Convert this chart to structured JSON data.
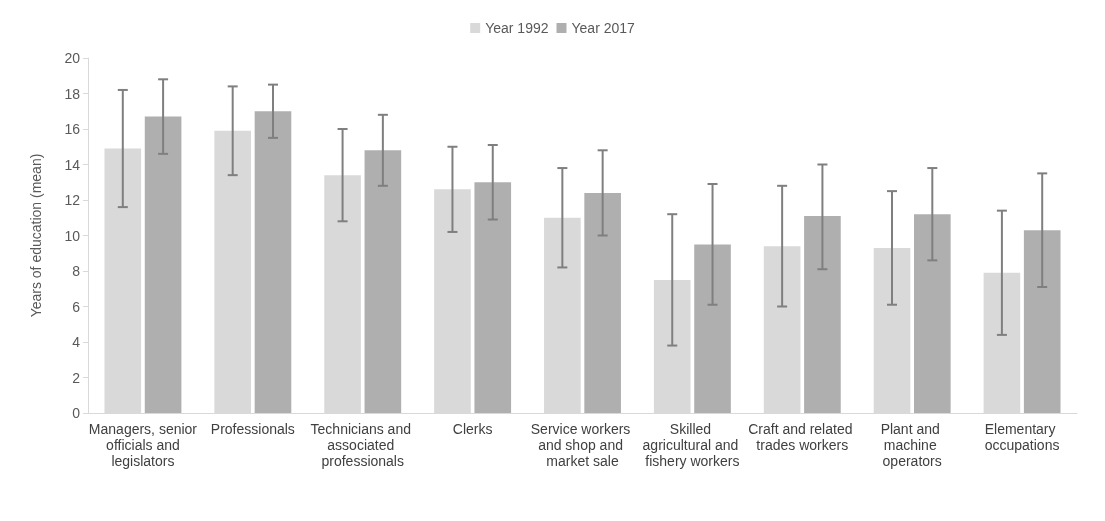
{
  "chart_data": {
    "type": "bar",
    "ylabel": "Years of education (mean)",
    "categories": [
      "Managers, senior officials and legislators",
      "Professionals",
      "Technicians and associated professionals",
      "Clerks",
      "Service workers and shop and market sale",
      "Skilled agricultural and fishery workers",
      "Craft and related trades workers",
      "Plant and machine operators",
      "Elementary occupations"
    ],
    "series": [
      {
        "name": "Year 1992",
        "color": "#d9d9d9",
        "values": [
          14.9,
          15.9,
          13.4,
          12.6,
          11.0,
          7.5,
          9.4,
          9.3,
          7.9
        ],
        "errors": [
          [
            11.6,
            18.2
          ],
          [
            13.4,
            18.4
          ],
          [
            10.8,
            16.0
          ],
          [
            10.2,
            15.0
          ],
          [
            8.2,
            13.8
          ],
          [
            3.8,
            11.2
          ],
          [
            6.0,
            12.8
          ],
          [
            6.1,
            12.5
          ],
          [
            4.4,
            11.4
          ]
        ]
      },
      {
        "name": "Year 2017",
        "color": "#afafaf",
        "values": [
          16.7,
          17.0,
          14.8,
          13.0,
          12.4,
          9.5,
          11.1,
          11.2,
          10.3
        ],
        "errors": [
          [
            14.6,
            18.8
          ],
          [
            15.5,
            18.5
          ],
          [
            12.8,
            16.8
          ],
          [
            10.9,
            15.1
          ],
          [
            10.0,
            14.8
          ],
          [
            6.1,
            12.9
          ],
          [
            8.1,
            14.0
          ],
          [
            8.6,
            13.8
          ],
          [
            7.1,
            13.5
          ]
        ]
      }
    ],
    "ylim": [
      0,
      20
    ],
    "yticks": [
      0,
      2,
      4,
      6,
      8,
      10,
      12,
      14,
      16,
      18,
      20
    ],
    "grid": false,
    "legend": "top"
  }
}
